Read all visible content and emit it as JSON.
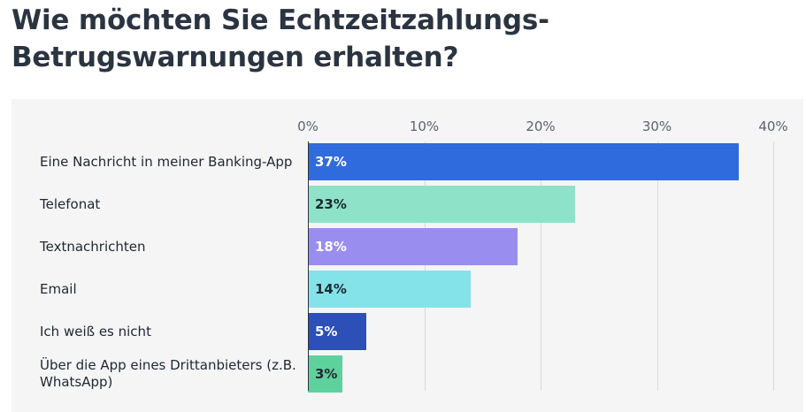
{
  "title": "Wie möchten Sie Echtzeitzahlungs-Betrugswarnungen erhalten?",
  "chart_data": {
    "type": "bar",
    "orientation": "horizontal",
    "title": "Wie möchten Sie Echtzeitzahlungs-Betrugswarnungen erhalten?",
    "xlim": [
      0,
      40
    ],
    "ticks": [
      "0%",
      "10%",
      "20%",
      "30%",
      "40%"
    ],
    "grid": true,
    "categories": [
      "Eine Nachricht in meiner Banking-App",
      "Telefonat",
      "Textnachrichten",
      "Email",
      "Ich weiß es nicht",
      "Über die App eines Drittanbieters (z.B. WhatsApp)"
    ],
    "values": [
      37,
      23,
      18,
      14,
      5,
      3
    ],
    "labels": [
      "37%",
      "23%",
      "18%",
      "14%",
      "5%",
      "3%"
    ],
    "colors": [
      "#2f6bdc",
      "#8ee2c8",
      "#9a8df0",
      "#84e3e8",
      "#2d4fb8",
      "#5fd19c"
    ],
    "label_colors": [
      "#ffffff",
      "#1f2733",
      "#ffffff",
      "#1f2733",
      "#ffffff",
      "#1f2733"
    ]
  }
}
